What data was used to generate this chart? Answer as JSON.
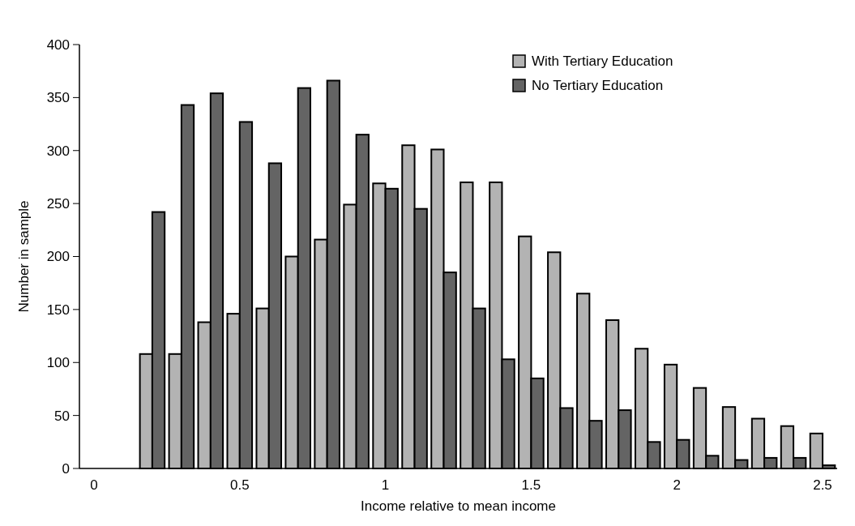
{
  "chart_data": {
    "type": "bar",
    "xlabel": "Income relative to mean income",
    "ylabel": "Number in sample",
    "x": [
      0.2,
      0.3,
      0.4,
      0.5,
      0.6,
      0.7,
      0.8,
      0.9,
      1.0,
      1.1,
      1.2,
      1.3,
      1.4,
      1.5,
      1.6,
      1.7,
      1.8,
      1.9,
      2.0,
      2.1,
      2.2,
      2.3,
      2.4,
      2.5
    ],
    "series": [
      {
        "name": "With Tertiary Education",
        "color": "#b3b3b3",
        "values": [
          108,
          108,
          138,
          146,
          151,
          200,
          216,
          249,
          269,
          305,
          301,
          270,
          270,
          219,
          204,
          165,
          140,
          113,
          98,
          76,
          58,
          47,
          40,
          33
        ]
      },
      {
        "name": "No Tertiary Education",
        "color": "#646464",
        "values": [
          242,
          343,
          354,
          327,
          288,
          359,
          366,
          315,
          264,
          245,
          185,
          151,
          103,
          85,
          57,
          45,
          55,
          25,
          27,
          12,
          8,
          10,
          10,
          3
        ]
      }
    ],
    "xlim": [
      -0.05,
      2.55
    ],
    "xticks": [
      0,
      0.5,
      1,
      1.5,
      2,
      2.5
    ],
    "ylim": [
      0,
      400
    ],
    "yticks": [
      0,
      50,
      100,
      150,
      200,
      250,
      300,
      350,
      400
    ],
    "legend": "top right",
    "grid": false
  }
}
